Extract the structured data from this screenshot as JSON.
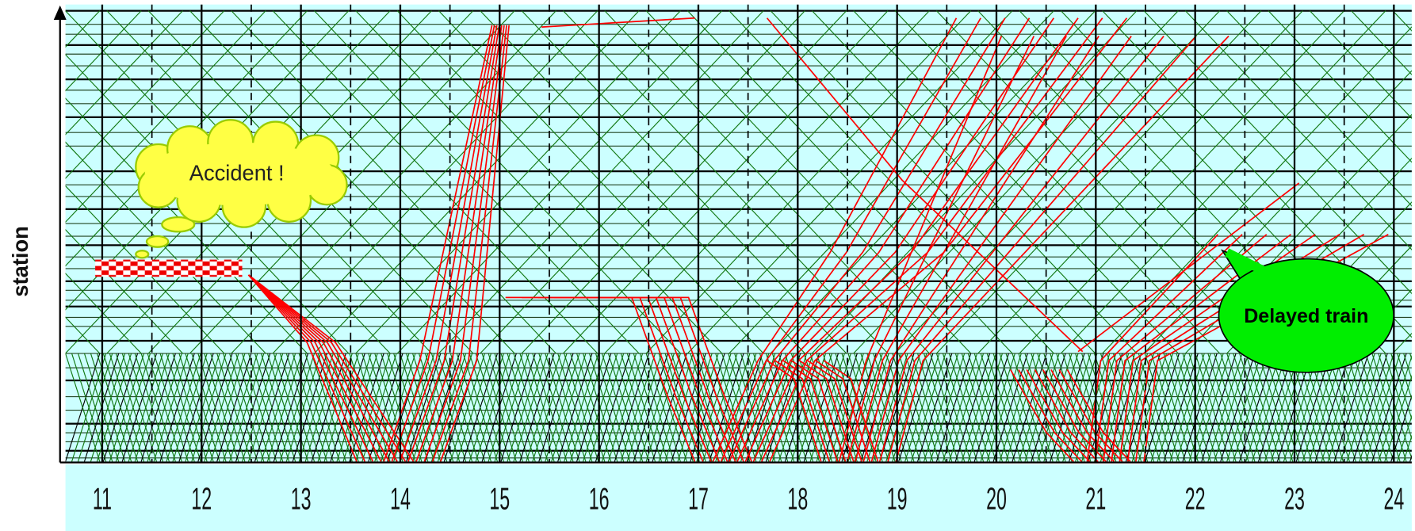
{
  "chart_data": {
    "type": "line",
    "y_label": "station",
    "xlim": [
      10.63,
      24.18
    ],
    "xticks": [
      11,
      12,
      13,
      14,
      15,
      16,
      17,
      18,
      19,
      20,
      21,
      22,
      23,
      24
    ],
    "grid": true,
    "annotations": [
      "Accident !",
      "Delayed train"
    ]
  }
}
